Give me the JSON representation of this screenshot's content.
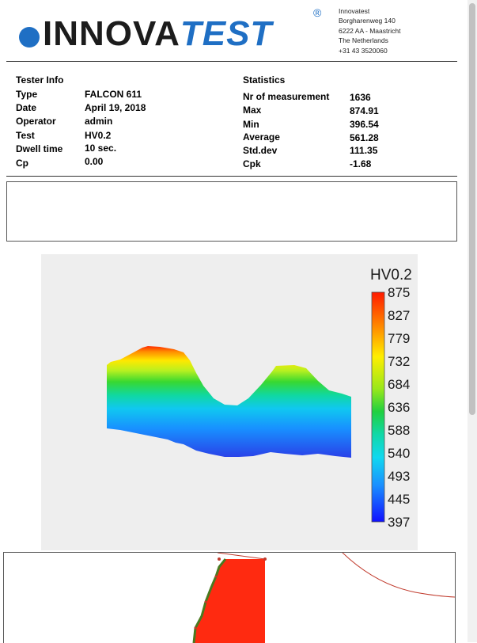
{
  "header": {
    "logo_text_a": "INNOVA",
    "logo_text_b": "TEST",
    "logo_reg": "®",
    "company_name": "Innovatest",
    "address1": "Borgharenweg 140",
    "address2": "6222 AA - Maastricht",
    "country": "The Netherlands",
    "phone": "+31 43 3520060"
  },
  "tester_info": {
    "title": "Tester Info",
    "rows": [
      {
        "label": "Type",
        "value": "FALCON 611"
      },
      {
        "label": "Date",
        "value": "April 19, 2018"
      },
      {
        "label": "Operator",
        "value": "admin"
      },
      {
        "label": "Test",
        "value": "HV0.2"
      },
      {
        "label": "Dwell time",
        "value": "10 sec."
      },
      {
        "label": "Cp",
        "value": "0.00"
      }
    ]
  },
  "statistics": {
    "title": "Statistics",
    "rows": [
      {
        "label": "Nr of measurement",
        "value": "1636"
      },
      {
        "label": "Max",
        "value": "874.91"
      },
      {
        "label": "Min",
        "value": "396.54"
      },
      {
        "label": "Average",
        "value": "561.28"
      },
      {
        "label": "Std.dev",
        "value": "111.35"
      },
      {
        "label": "Cpk",
        "value": "-1.68"
      }
    ]
  },
  "hardness_map": {
    "legend_title": "HV0.2",
    "legend_ticks": [
      "875",
      "827",
      "779",
      "732",
      "684",
      "636",
      "588",
      "540",
      "493",
      "445",
      "397"
    ],
    "colors": {
      "high": "#ff1a00",
      "low": "#1030ff",
      "background": "#eeeeee"
    }
  },
  "bottom_view": {
    "sample_color": "#ff2a10",
    "edge_color": "#4a7a20"
  }
}
